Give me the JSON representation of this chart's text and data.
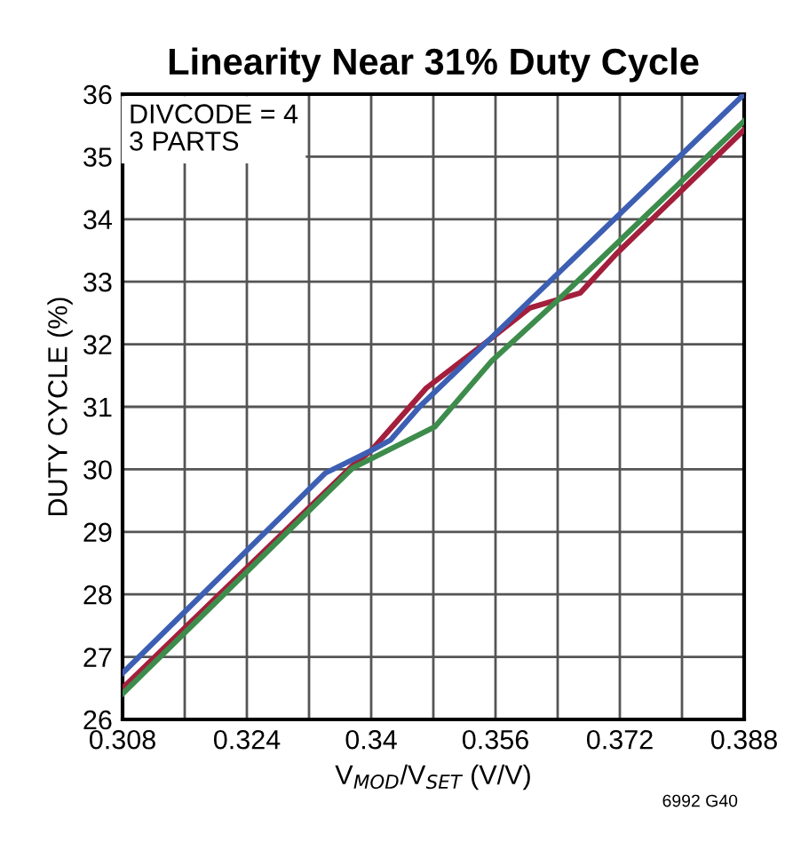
{
  "chart_data": {
    "type": "line",
    "title": "Linearity Near 31% Duty Cycle",
    "xlabel": "V$_{MOD}$/V$_{SET}$ (V/V)",
    "ylabel": "DUTY CYCLE (%)",
    "series": [
      {
        "color": "#a31f3c",
        "x": [
          0.308,
          0.3376,
          0.34,
          0.3471,
          0.3555,
          0.3604,
          0.3669,
          0.3715,
          0.388
        ],
        "values": [
          26.5,
          30.06,
          30.3,
          31.3,
          32.1,
          32.58,
          32.82,
          33.44,
          35.43
        ]
      },
      {
        "color": "#3d8c4c",
        "x": [
          0.308,
          0.3376,
          0.3482,
          0.3555,
          0.3638,
          0.388
        ],
        "values": [
          26.41,
          30.02,
          30.68,
          31.73,
          32.68,
          35.57
        ]
      },
      {
        "color": "#3d5fb3",
        "x": [
          0.308,
          0.3341,
          0.34,
          0.3425,
          0.3463,
          0.3555,
          0.388
        ],
        "values": [
          26.74,
          29.94,
          30.3,
          30.47,
          31.01,
          32.11,
          36.0
        ]
      }
    ],
    "xlim": [
      0.308,
      0.388
    ],
    "xticks": [
      0.308,
      {
        "value": 0.316,
        "label": null
      },
      0.324,
      {
        "value": 0.332,
        "label": null
      },
      0.34,
      {
        "value": 0.348,
        "label": null
      },
      0.356,
      {
        "value": 0.364,
        "label": null
      },
      0.372,
      {
        "value": 0.38,
        "label": null
      },
      0.388
    ],
    "ylim": [
      26,
      36
    ],
    "yticks": [
      26,
      27,
      28,
      29,
      30,
      31,
      32,
      33,
      34,
      35,
      36
    ],
    "grid": true,
    "marker": "none",
    "line_style": "solid",
    "annotations": [
      "DIVCODE = 4\n3 PARTS",
      "6992 G40"
    ]
  }
}
